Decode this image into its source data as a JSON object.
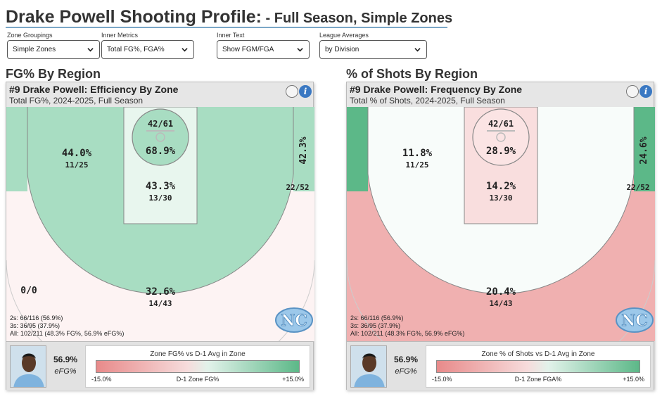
{
  "page": {
    "title_main": "Drake Powell Shooting Profile:",
    "title_sub": " - Full Season, Simple Zones"
  },
  "controls": [
    {
      "label": "Zone Groupings",
      "value": "Simple Zones"
    },
    {
      "label": "Inner Metrics",
      "value": "Total FG%, FGA%"
    },
    {
      "label": "Inner Text",
      "value": "Show FGM/FGA"
    },
    {
      "label": "League Averages",
      "value": "by Division"
    }
  ],
  "panels": [
    {
      "section_title": "FG% By Region",
      "title": "#9 Drake Powell: Efficiency By Zone",
      "subtitle": "Total FG%, 2024-2025, Full Season",
      "info_icon_text": "i",
      "zones": {
        "rim": {
          "pct": "68.9%",
          "frac": "42/61",
          "color": "#a8ddc2"
        },
        "paint": {
          "pct": "43.3%",
          "frac": "13/30",
          "color": "#e8f6ee"
        },
        "midrange": {
          "pct": "44.0%",
          "frac": "11/25",
          "color": "#a8ddc2"
        },
        "corner": {
          "pct": "42.3%",
          "frac": "22/52",
          "color": "#a8ddc2"
        },
        "three": {
          "pct": "32.6%",
          "frac": "14/43",
          "color": "#fdf3f3"
        },
        "deep": {
          "pct": "0/0",
          "color": "#ffffff"
        }
      },
      "stats": {
        "twos": "2s: 66/116 (56.9%)",
        "threes": "3s: 36/95 (37.9%)",
        "all": "All: 102/211 (48.3% FG%, 56.9% eFG%)"
      },
      "footer": {
        "efg_value": "56.9%",
        "efg_label": "eFG%",
        "legend_title": "Zone FG% vs D-1 Avg in Zone",
        "legend_min": "-15.0%",
        "legend_mid": "D-1 Zone FG%",
        "legend_max": "+15.0%"
      }
    },
    {
      "section_title": "% of Shots By Region",
      "title": "#9 Drake Powell: Frequency By Zone",
      "subtitle": "Total % of Shots, 2024-2025, Full Season",
      "info_icon_text": "i",
      "zones": {
        "rim": {
          "pct": "28.9%",
          "frac": "42/61",
          "color": "#fbe4e4"
        },
        "paint": {
          "pct": "14.2%",
          "frac": "13/30",
          "color": "#f9dede"
        },
        "midrange": {
          "pct": "11.8%",
          "frac": "11/25",
          "color": "#f8fcfa"
        },
        "corner": {
          "pct": "24.6%",
          "frac": "22/52",
          "color": "#5cb888"
        },
        "three": {
          "pct": "20.4%",
          "frac": "14/43",
          "color": "#f0b0b0"
        },
        "deep": {
          "color": "#ffffff"
        }
      },
      "stats": {
        "twos": "2s: 66/116 (56.9%)",
        "threes": "3s: 36/95 (37.9%)",
        "all": "All: 102/211 (48.3% FG%, 56.9% eFG%)"
      },
      "footer": {
        "efg_value": "56.9%",
        "efg_label": "eFG%",
        "legend_title": "Zone % of Shots vs D-1 Avg in Zone",
        "legend_min": "-15.0%",
        "legend_mid": "D-1 Zone FGA%",
        "legend_max": "+15.0%"
      }
    }
  ],
  "icons": {
    "chevron": "chevron-down-icon",
    "logo": "unc-logo-icon",
    "avatar": "player-photo"
  }
}
